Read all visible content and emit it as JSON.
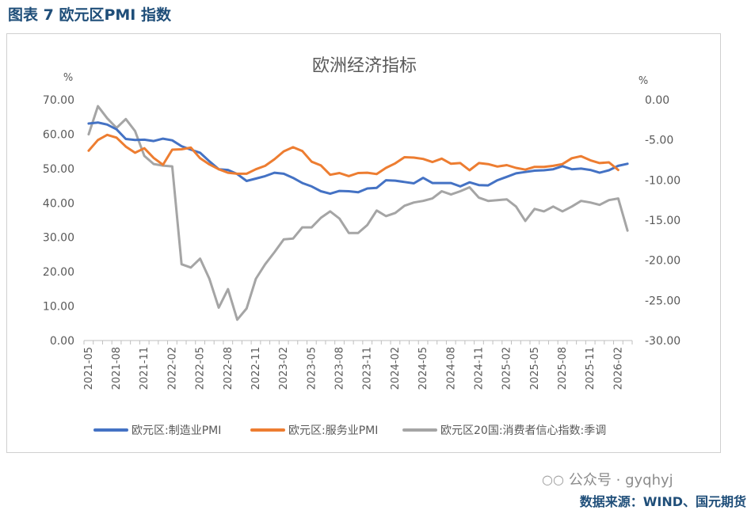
{
  "figure_title": "图表 7  欧元区PMI 指数",
  "source": "数据来源：WIND、国元期货",
  "watermark": "公众号 · gyqhyj",
  "watermark_icon": "wechat-icon",
  "colors": {
    "manufacturing": "#4472c4",
    "services": "#ed7d31",
    "confidence": "#a5a5a5",
    "title": "#1f4e79"
  },
  "chart_data": {
    "type": "line",
    "title": "欧洲经济指标",
    "ylabel_left": "%",
    "ylabel_right": "%",
    "ylim_left": [
      0,
      70
    ],
    "ylim_right": [
      -30,
      0
    ],
    "left_ticks": [
      "70.00",
      "60.00",
      "50.00",
      "40.00",
      "30.00",
      "20.00",
      "10.00",
      "0.00"
    ],
    "right_ticks": [
      "0.00",
      "-5.00",
      "-10.00",
      "-15.00",
      "-20.00",
      "-25.00",
      "-30.00"
    ],
    "x_tick_labels": [
      "2021-05",
      "2021-08",
      "2021-11",
      "2022-02",
      "2022-05",
      "2022-08",
      "2022-11",
      "2023-02",
      "2023-05",
      "2023-08",
      "2023-11",
      "2024-02",
      "2024-05",
      "2024-08",
      "2024-11",
      "2025-02",
      "2025-05",
      "2025-08",
      "2025-11",
      "2026-02"
    ],
    "legend_position": "bottom",
    "series": [
      {
        "name": "欧元区:制造业PMI",
        "axis": "left",
        "values": [
          63.1,
          63.4,
          62.8,
          61.4,
          58.6,
          58.3,
          58.4,
          58.0,
          58.7,
          58.2,
          56.5,
          55.5,
          54.6,
          52.1,
          49.8,
          49.6,
          48.4,
          46.4,
          47.1,
          47.8,
          48.8,
          48.5,
          47.3,
          45.8,
          44.8,
          43.4,
          42.7,
          43.5,
          43.4,
          43.1,
          44.2,
          44.4,
          46.6,
          46.5,
          46.1,
          45.7,
          47.3,
          45.8,
          45.8,
          45.8,
          44.8,
          46.0,
          45.2,
          45.1,
          46.6,
          47.6,
          48.6,
          49.0,
          49.4,
          49.5,
          49.8,
          50.7,
          49.8,
          50.0,
          49.6,
          48.8,
          49.5,
          50.8,
          51.4
        ]
      },
      {
        "name": "欧元区:服务业PMI",
        "axis": "left",
        "values": [
          55.2,
          58.3,
          59.8,
          59.0,
          56.4,
          54.6,
          55.9,
          53.1,
          51.1,
          55.5,
          55.6,
          56.1,
          53.0,
          51.2,
          49.8,
          48.8,
          48.5,
          48.5,
          49.8,
          50.8,
          52.7,
          55.0,
          56.2,
          55.1,
          52.0,
          50.9,
          48.2,
          48.7,
          47.8,
          48.7,
          48.8,
          48.4,
          50.2,
          51.5,
          53.3,
          53.2,
          52.8,
          51.9,
          52.9,
          51.4,
          51.6,
          49.5,
          51.6,
          51.3,
          50.6,
          51.0,
          50.2,
          49.7,
          50.5,
          50.5,
          50.8,
          51.3,
          53.0,
          53.6,
          52.4,
          51.6,
          51.8,
          49.6
        ]
      },
      {
        "name": "欧元区20国:消费者信心指数:季调",
        "axis": "right",
        "values": [
          -4.3,
          -0.8,
          -2.3,
          -3.5,
          -2.4,
          -3.9,
          -7.0,
          -8.0,
          -8.2,
          -8.3,
          -20.5,
          -20.9,
          -19.8,
          -22.3,
          -25.9,
          -23.6,
          -27.4,
          -26.0,
          -22.3,
          -20.5,
          -19.0,
          -17.4,
          -17.3,
          -15.9,
          -15.9,
          -14.7,
          -13.9,
          -14.8,
          -16.6,
          -16.6,
          -15.6,
          -13.8,
          -14.5,
          -14.1,
          -13.2,
          -12.8,
          -12.6,
          -12.3,
          -11.4,
          -11.8,
          -11.4,
          -10.9,
          -12.2,
          -12.6,
          -12.5,
          -12.4,
          -13.3,
          -15.1,
          -13.6,
          -13.9,
          -13.3,
          -13.9,
          -13.3,
          -12.6,
          -12.8,
          -13.1,
          -12.5,
          -12.3,
          -16.3
        ]
      }
    ]
  }
}
